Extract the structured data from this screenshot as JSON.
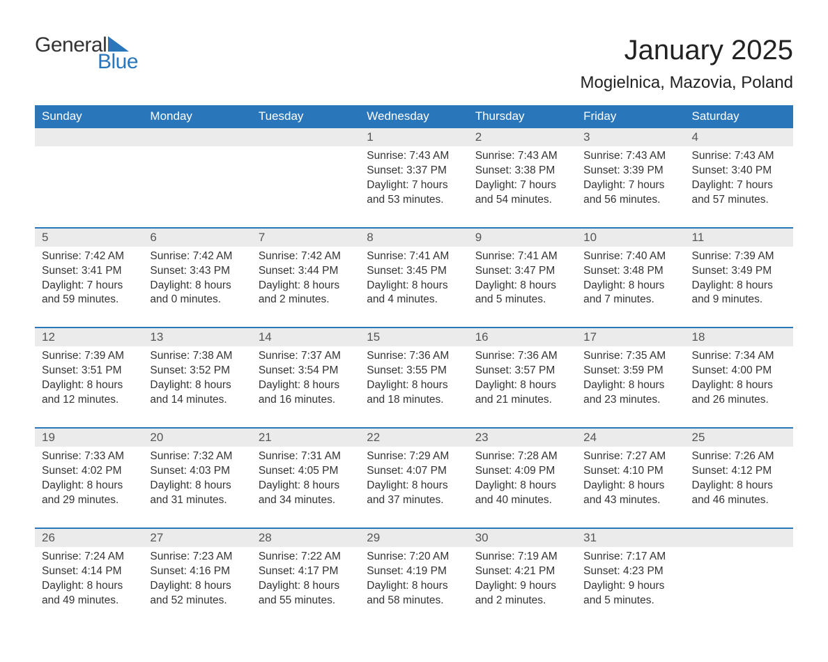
{
  "logo": {
    "text_general": "General",
    "text_blue": "Blue",
    "general_color": "#333333",
    "blue_color": "#2a76bb",
    "shape_color": "#2a76bb"
  },
  "title": "January 2025",
  "location": "Mogielnica, Mazovia, Poland",
  "colors": {
    "header_bg": "#2a76bb",
    "header_text": "#ffffff",
    "daynum_bg": "#ebebeb",
    "daynum_text": "#555555",
    "body_text": "#333333",
    "week_border": "#2a76bb",
    "background": "#ffffff"
  },
  "typography": {
    "title_fontsize": 40,
    "location_fontsize": 24,
    "header_fontsize": 17,
    "daynum_fontsize": 17,
    "body_fontsize": 15.5
  },
  "weekday_headers": [
    "Sunday",
    "Monday",
    "Tuesday",
    "Wednesday",
    "Thursday",
    "Friday",
    "Saturday"
  ],
  "weeks": [
    {
      "daynums": [
        "",
        "",
        "",
        "1",
        "2",
        "3",
        "4"
      ],
      "cells": [
        {
          "sunrise": "",
          "sunset": "",
          "daylight1": "",
          "daylight2": ""
        },
        {
          "sunrise": "",
          "sunset": "",
          "daylight1": "",
          "daylight2": ""
        },
        {
          "sunrise": "",
          "sunset": "",
          "daylight1": "",
          "daylight2": ""
        },
        {
          "sunrise": "Sunrise: 7:43 AM",
          "sunset": "Sunset: 3:37 PM",
          "daylight1": "Daylight: 7 hours",
          "daylight2": "and 53 minutes."
        },
        {
          "sunrise": "Sunrise: 7:43 AM",
          "sunset": "Sunset: 3:38 PM",
          "daylight1": "Daylight: 7 hours",
          "daylight2": "and 54 minutes."
        },
        {
          "sunrise": "Sunrise: 7:43 AM",
          "sunset": "Sunset: 3:39 PM",
          "daylight1": "Daylight: 7 hours",
          "daylight2": "and 56 minutes."
        },
        {
          "sunrise": "Sunrise: 7:43 AM",
          "sunset": "Sunset: 3:40 PM",
          "daylight1": "Daylight: 7 hours",
          "daylight2": "and 57 minutes."
        }
      ]
    },
    {
      "daynums": [
        "5",
        "6",
        "7",
        "8",
        "9",
        "10",
        "11"
      ],
      "cells": [
        {
          "sunrise": "Sunrise: 7:42 AM",
          "sunset": "Sunset: 3:41 PM",
          "daylight1": "Daylight: 7 hours",
          "daylight2": "and 59 minutes."
        },
        {
          "sunrise": "Sunrise: 7:42 AM",
          "sunset": "Sunset: 3:43 PM",
          "daylight1": "Daylight: 8 hours",
          "daylight2": "and 0 minutes."
        },
        {
          "sunrise": "Sunrise: 7:42 AM",
          "sunset": "Sunset: 3:44 PM",
          "daylight1": "Daylight: 8 hours",
          "daylight2": "and 2 minutes."
        },
        {
          "sunrise": "Sunrise: 7:41 AM",
          "sunset": "Sunset: 3:45 PM",
          "daylight1": "Daylight: 8 hours",
          "daylight2": "and 4 minutes."
        },
        {
          "sunrise": "Sunrise: 7:41 AM",
          "sunset": "Sunset: 3:47 PM",
          "daylight1": "Daylight: 8 hours",
          "daylight2": "and 5 minutes."
        },
        {
          "sunrise": "Sunrise: 7:40 AM",
          "sunset": "Sunset: 3:48 PM",
          "daylight1": "Daylight: 8 hours",
          "daylight2": "and 7 minutes."
        },
        {
          "sunrise": "Sunrise: 7:39 AM",
          "sunset": "Sunset: 3:49 PM",
          "daylight1": "Daylight: 8 hours",
          "daylight2": "and 9 minutes."
        }
      ]
    },
    {
      "daynums": [
        "12",
        "13",
        "14",
        "15",
        "16",
        "17",
        "18"
      ],
      "cells": [
        {
          "sunrise": "Sunrise: 7:39 AM",
          "sunset": "Sunset: 3:51 PM",
          "daylight1": "Daylight: 8 hours",
          "daylight2": "and 12 minutes."
        },
        {
          "sunrise": "Sunrise: 7:38 AM",
          "sunset": "Sunset: 3:52 PM",
          "daylight1": "Daylight: 8 hours",
          "daylight2": "and 14 minutes."
        },
        {
          "sunrise": "Sunrise: 7:37 AM",
          "sunset": "Sunset: 3:54 PM",
          "daylight1": "Daylight: 8 hours",
          "daylight2": "and 16 minutes."
        },
        {
          "sunrise": "Sunrise: 7:36 AM",
          "sunset": "Sunset: 3:55 PM",
          "daylight1": "Daylight: 8 hours",
          "daylight2": "and 18 minutes."
        },
        {
          "sunrise": "Sunrise: 7:36 AM",
          "sunset": "Sunset: 3:57 PM",
          "daylight1": "Daylight: 8 hours",
          "daylight2": "and 21 minutes."
        },
        {
          "sunrise": "Sunrise: 7:35 AM",
          "sunset": "Sunset: 3:59 PM",
          "daylight1": "Daylight: 8 hours",
          "daylight2": "and 23 minutes."
        },
        {
          "sunrise": "Sunrise: 7:34 AM",
          "sunset": "Sunset: 4:00 PM",
          "daylight1": "Daylight: 8 hours",
          "daylight2": "and 26 minutes."
        }
      ]
    },
    {
      "daynums": [
        "19",
        "20",
        "21",
        "22",
        "23",
        "24",
        "25"
      ],
      "cells": [
        {
          "sunrise": "Sunrise: 7:33 AM",
          "sunset": "Sunset: 4:02 PM",
          "daylight1": "Daylight: 8 hours",
          "daylight2": "and 29 minutes."
        },
        {
          "sunrise": "Sunrise: 7:32 AM",
          "sunset": "Sunset: 4:03 PM",
          "daylight1": "Daylight: 8 hours",
          "daylight2": "and 31 minutes."
        },
        {
          "sunrise": "Sunrise: 7:31 AM",
          "sunset": "Sunset: 4:05 PM",
          "daylight1": "Daylight: 8 hours",
          "daylight2": "and 34 minutes."
        },
        {
          "sunrise": "Sunrise: 7:29 AM",
          "sunset": "Sunset: 4:07 PM",
          "daylight1": "Daylight: 8 hours",
          "daylight2": "and 37 minutes."
        },
        {
          "sunrise": "Sunrise: 7:28 AM",
          "sunset": "Sunset: 4:09 PM",
          "daylight1": "Daylight: 8 hours",
          "daylight2": "and 40 minutes."
        },
        {
          "sunrise": "Sunrise: 7:27 AM",
          "sunset": "Sunset: 4:10 PM",
          "daylight1": "Daylight: 8 hours",
          "daylight2": "and 43 minutes."
        },
        {
          "sunrise": "Sunrise: 7:26 AM",
          "sunset": "Sunset: 4:12 PM",
          "daylight1": "Daylight: 8 hours",
          "daylight2": "and 46 minutes."
        }
      ]
    },
    {
      "daynums": [
        "26",
        "27",
        "28",
        "29",
        "30",
        "31",
        ""
      ],
      "cells": [
        {
          "sunrise": "Sunrise: 7:24 AM",
          "sunset": "Sunset: 4:14 PM",
          "daylight1": "Daylight: 8 hours",
          "daylight2": "and 49 minutes."
        },
        {
          "sunrise": "Sunrise: 7:23 AM",
          "sunset": "Sunset: 4:16 PM",
          "daylight1": "Daylight: 8 hours",
          "daylight2": "and 52 minutes."
        },
        {
          "sunrise": "Sunrise: 7:22 AM",
          "sunset": "Sunset: 4:17 PM",
          "daylight1": "Daylight: 8 hours",
          "daylight2": "and 55 minutes."
        },
        {
          "sunrise": "Sunrise: 7:20 AM",
          "sunset": "Sunset: 4:19 PM",
          "daylight1": "Daylight: 8 hours",
          "daylight2": "and 58 minutes."
        },
        {
          "sunrise": "Sunrise: 7:19 AM",
          "sunset": "Sunset: 4:21 PM",
          "daylight1": "Daylight: 9 hours",
          "daylight2": "and 2 minutes."
        },
        {
          "sunrise": "Sunrise: 7:17 AM",
          "sunset": "Sunset: 4:23 PM",
          "daylight1": "Daylight: 9 hours",
          "daylight2": "and 5 minutes."
        },
        {
          "sunrise": "",
          "sunset": "",
          "daylight1": "",
          "daylight2": ""
        }
      ]
    }
  ]
}
